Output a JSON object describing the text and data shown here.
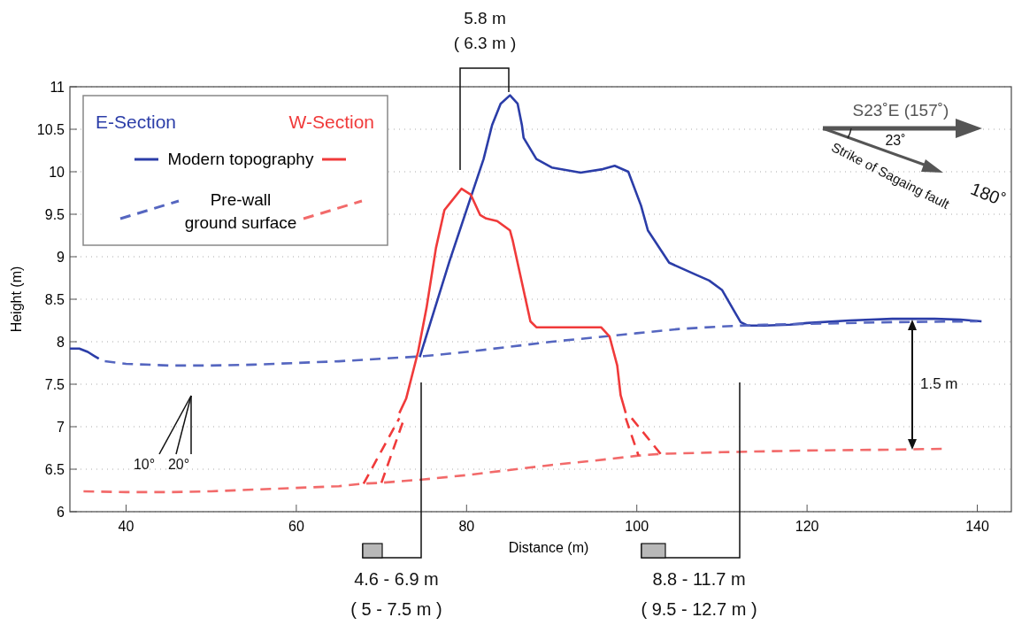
{
  "chart_data": {
    "type": "line",
    "xlabel": "Distance (m)",
    "ylabel": "Height (m)",
    "xlim": [
      33.4,
      144
    ],
    "xticks": [
      40,
      60,
      80,
      100,
      120,
      140
    ],
    "ylim": [
      6,
      11
    ],
    "yticks": [
      6,
      6.5,
      7,
      7.5,
      8,
      8.5,
      9,
      9.5,
      10,
      10.5,
      11
    ],
    "grid": "y",
    "legend": "top left",
    "series": [
      {
        "name": "Modern topography",
        "color": "#2b3da8",
        "line_style": "solid",
        "x": [
          33.4,
          34.5,
          35.5,
          36.3,
          36.8,
          50,
          74.5,
          78,
          80,
          82,
          83,
          84,
          85.1,
          86,
          86.5,
          86.7,
          88.2,
          90,
          93.4,
          96,
          97.4,
          99,
          100.5,
          101.3,
          103.8,
          106.9,
          108.5,
          110,
          111.5,
          112.2,
          113,
          115,
          118,
          120,
          125,
          130,
          135,
          138,
          140.5
        ],
        "values": [
          7.92,
          7.92,
          7.88,
          7.83,
          7.8,
          null,
          7.82,
          8.95,
          9.55,
          10.15,
          10.55,
          10.8,
          10.9,
          10.8,
          10.55,
          10.4,
          10.15,
          10.05,
          9.99,
          10.03,
          10.07,
          10.0,
          9.6,
          9.31,
          8.93,
          8.79,
          8.72,
          8.61,
          8.35,
          8.23,
          8.19,
          8.19,
          8.2,
          8.22,
          8.25,
          8.27,
          8.27,
          8.26,
          8.24
        ]
      },
      {
        "name": "Pre-wall ground surface",
        "color": "#5566c0",
        "line_style": "dashed",
        "x": [
          37.5,
          40,
          45,
          50,
          55,
          60,
          65,
          70,
          75,
          80,
          85,
          90,
          95,
          100,
          105,
          110,
          115,
          120,
          130,
          140
        ],
        "values": [
          7.77,
          7.74,
          7.72,
          7.72,
          7.73,
          7.75,
          7.77,
          7.8,
          7.83,
          7.88,
          7.94,
          8.0,
          8.05,
          8.1,
          8.15,
          8.18,
          8.2,
          8.21,
          8.23,
          8.24
        ]
      },
      {
        "color": "#f03a3a",
        "line_style": "solid",
        "x": [
          72.1,
          72.9,
          74.3,
          75.3,
          76.4,
          77.4,
          79.4,
          80.5,
          81.6,
          82.3,
          83.6,
          85.1,
          85.4,
          87.5,
          88.2,
          95.8,
          96.8,
          97.7,
          98.1,
          98.7
        ],
        "values": [
          7.16,
          7.33,
          7.88,
          8.4,
          9.1,
          9.55,
          9.8,
          9.73,
          9.49,
          9.45,
          9.42,
          9.31,
          9.2,
          8.24,
          8.17,
          8.17,
          8.06,
          7.72,
          7.37,
          7.16
        ]
      },
      {
        "color": "#f26a6a",
        "line_style": "dashed",
        "x": [
          35,
          40,
          45,
          50,
          55,
          60,
          65,
          67.9,
          70,
          75,
          80,
          85,
          90,
          95,
          100.2,
          102.8,
          110,
          120,
          130,
          136
        ],
        "values": [
          6.24,
          6.23,
          6.23,
          6.24,
          6.26,
          6.28,
          6.3,
          6.33,
          6.34,
          6.38,
          6.43,
          6.49,
          6.55,
          6.6,
          6.66,
          6.68,
          6.7,
          6.72,
          6.73,
          6.74
        ]
      },
      {
        "color": "#f03a3a",
        "line_style": "dashed",
        "x": [
          67.9,
          72.1
        ],
        "values": [
          6.33,
          7.1
        ]
      },
      {
        "color": "#f03a3a",
        "line_style": "dashed",
        "x": [
          70,
          72.5
        ],
        "values": [
          6.34,
          7.05
        ]
      },
      {
        "color": "#f03a3a",
        "line_style": "dashed",
        "x": [
          98.7,
          100.2
        ],
        "values": [
          7.1,
          6.66
        ]
      },
      {
        "color": "#f03a3a",
        "line_style": "dashed",
        "x": [
          99.4,
          102.8
        ],
        "values": [
          7.1,
          6.68
        ]
      }
    ],
    "annotations": [
      "E-Section",
      "W-Section",
      "5.8 m",
      "( 6.3 m )",
      "4.6 - 6.9 m",
      "( 5 - 7.5 m )",
      "8.8 - 11.7 m",
      "( 9.5 - 12.7 m )",
      "1.5 m",
      "10°",
      "20°",
      "S23˚E  (157˚)",
      "23˚",
      "Strike of Sagaing fault",
      "180˚"
    ]
  }
}
